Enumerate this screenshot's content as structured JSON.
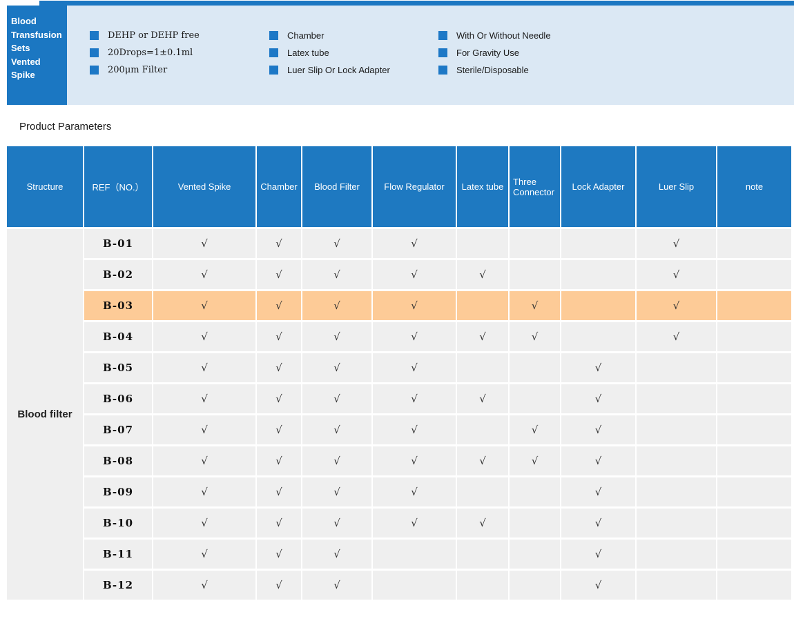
{
  "colors": {
    "accent_blue": "#1b77c2",
    "table_header_blue": "#1e79c1",
    "band_light_blue": "#dbe8f4",
    "row_gray": "#efefef",
    "highlight_orange": "#fdcb97"
  },
  "banner": {
    "title": "Blood\nTransfusion\nSets\nVented\nSpike",
    "features_col1": [
      "DEHP or DEHP free",
      "20Drops=1±0.1ml",
      "200μm Filter"
    ],
    "features_col2": [
      "Chamber",
      "Latex tube",
      "Luer Slip Or Lock Adapter"
    ],
    "features_col3": [
      "With Or Without Needle",
      "For Gravity Use",
      "Sterile/Disposable"
    ]
  },
  "section": {
    "title": "Product Parameters"
  },
  "table": {
    "columns": [
      "Structure",
      "REF（NO.）",
      "Vented Spike",
      "Chamber",
      "Blood Filter",
      "Flow Regulator",
      "Latex tube",
      "Three Connector",
      "Lock Adapter",
      "Luer Slip",
      "note"
    ],
    "structure_label": "Blood filter",
    "check_symbol": "√",
    "rows": [
      {
        "ref": "B-01",
        "checks": [
          1,
          1,
          1,
          1,
          0,
          0,
          0,
          1,
          0
        ],
        "highlight": false
      },
      {
        "ref": "B-02",
        "checks": [
          1,
          1,
          1,
          1,
          1,
          0,
          0,
          1,
          0
        ],
        "highlight": false
      },
      {
        "ref": "B-03",
        "checks": [
          1,
          1,
          1,
          1,
          0,
          1,
          0,
          1,
          0
        ],
        "highlight": true
      },
      {
        "ref": "B-04",
        "checks": [
          1,
          1,
          1,
          1,
          1,
          1,
          0,
          1,
          0
        ],
        "highlight": false
      },
      {
        "ref": "B-05",
        "checks": [
          1,
          1,
          1,
          1,
          0,
          0,
          1,
          0,
          0
        ],
        "highlight": false
      },
      {
        "ref": "B-06",
        "checks": [
          1,
          1,
          1,
          1,
          1,
          0,
          1,
          0,
          0
        ],
        "highlight": false
      },
      {
        "ref": "B-07",
        "checks": [
          1,
          1,
          1,
          1,
          0,
          1,
          1,
          0,
          0
        ],
        "highlight": false
      },
      {
        "ref": "B-08",
        "checks": [
          1,
          1,
          1,
          1,
          1,
          1,
          1,
          0,
          0
        ],
        "highlight": false
      },
      {
        "ref": "B-09",
        "checks": [
          1,
          1,
          1,
          1,
          0,
          0,
          1,
          0,
          0
        ],
        "highlight": false
      },
      {
        "ref": "B-10",
        "checks": [
          1,
          1,
          1,
          1,
          1,
          0,
          1,
          0,
          0
        ],
        "highlight": false
      },
      {
        "ref": "B-11",
        "checks": [
          1,
          1,
          1,
          0,
          0,
          0,
          1,
          0,
          0
        ],
        "highlight": false
      },
      {
        "ref": "B-12",
        "checks": [
          1,
          1,
          1,
          0,
          0,
          0,
          1,
          0,
          0
        ],
        "highlight": false
      }
    ]
  }
}
